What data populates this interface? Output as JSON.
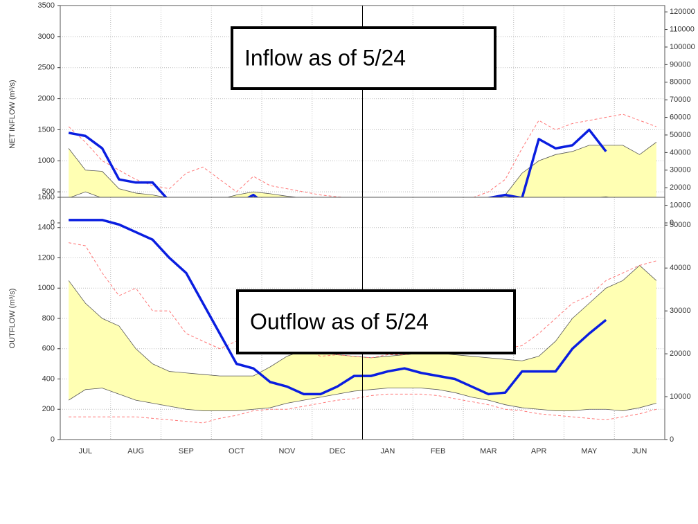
{
  "chart_data": [
    {
      "type": "line",
      "y_label": "NET INFLOW (m³/s)",
      "annotation": "Inflow as of 5/24",
      "ylim": [
        0,
        3500
      ],
      "yticks": [
        0,
        500,
        1000,
        1500,
        2000,
        2500,
        3000,
        3500
      ],
      "y2lim": [
        0,
        123600
      ],
      "y2ticks": [
        0,
        10000,
        20000,
        30000,
        40000,
        50000,
        60000,
        70000,
        80000,
        90000,
        100000,
        110000,
        120000
      ],
      "grid": true,
      "band": {
        "color": "#ffffb3",
        "upper": [
          1200,
          850,
          830,
          550,
          480,
          450,
          400,
          350,
          300,
          380,
          450,
          500,
          470,
          430,
          400,
          380,
          360,
          340,
          320,
          300,
          280,
          270,
          260,
          270,
          300,
          340,
          450,
          800,
          1000,
          1100,
          1150,
          1250,
          1250,
          1250,
          1100,
          1300
        ],
        "lower": [
          400,
          500,
          400,
          300,
          200,
          120,
          80,
          60,
          60,
          80,
          100,
          120,
          130,
          150,
          170,
          180,
          190,
          200,
          200,
          190,
          180,
          180,
          180,
          190,
          200,
          210,
          230,
          260,
          300,
          350,
          400,
          400,
          420,
          380,
          350,
          380
        ]
      },
      "series": [
        {
          "color": "#ff7777",
          "dash": true,
          "values": [
            1550,
            1300,
            1000,
            850,
            700,
            600,
            550,
            800,
            900,
            700,
            500,
            750,
            600,
            550,
            500,
            450,
            420,
            400,
            380,
            360,
            340,
            320,
            310,
            330,
            400,
            500,
            700,
            1200,
            1650,
            1500,
            1600,
            1650,
            1700,
            1750,
            1650,
            1550
          ]
        },
        {
          "color": "#ff7777",
          "dash": true,
          "values": [
            100,
            150,
            100,
            60,
            40,
            20,
            10,
            10,
            20,
            30,
            40,
            50,
            60,
            80,
            90,
            100,
            100,
            100,
            100,
            100,
            100,
            100,
            100,
            110,
            120,
            130,
            140,
            150,
            200,
            250,
            300,
            350,
            400,
            300,
            200,
            150
          ]
        },
        {
          "color": "#0a1ee0",
          "width": 3.5,
          "values": [
            1450,
            1400,
            1200,
            700,
            650,
            650,
            350,
            100,
            350,
            250,
            300,
            450,
            250,
            250,
            200,
            250,
            320,
            350,
            330,
            300,
            250,
            220,
            200,
            250,
            300,
            400,
            450,
            400,
            1350,
            1200,
            1250,
            1500,
            1150,
            null,
            null,
            null
          ]
        }
      ]
    },
    {
      "type": "line",
      "y_label": "OUTFLOW (m³/s)",
      "annotation": "Outflow as of 5/24",
      "categories": [
        null,
        "JUL",
        null,
        null,
        "AUG",
        null,
        null,
        "SEP",
        null,
        null,
        "OCT",
        null,
        null,
        "NOV",
        null,
        null,
        "DEC",
        null,
        null,
        "JAN",
        null,
        null,
        "FEB",
        null,
        null,
        "MAR",
        null,
        null,
        "APR",
        null,
        null,
        "MAY",
        null,
        null,
        "JUN",
        null
      ],
      "ylim": [
        0,
        1600
      ],
      "yticks": [
        0,
        200,
        400,
        600,
        800,
        1000,
        1200,
        1400,
        1600
      ],
      "y2lim": [
        0,
        56500
      ],
      "y2ticks": [
        0,
        10000,
        20000,
        30000,
        40000,
        50000
      ],
      "grid": true,
      "band": {
        "color": "#ffffb3",
        "upper": [
          1050,
          900,
          800,
          750,
          600,
          500,
          450,
          440,
          430,
          420,
          420,
          420,
          480,
          550,
          590,
          580,
          560,
          550,
          540,
          550,
          560,
          570,
          570,
          560,
          550,
          540,
          530,
          520,
          550,
          650,
          800,
          900,
          1000,
          1050,
          1150,
          1050
        ],
        "lower": [
          260,
          330,
          340,
          300,
          260,
          240,
          220,
          200,
          190,
          190,
          190,
          200,
          210,
          240,
          260,
          280,
          300,
          320,
          330,
          340,
          340,
          340,
          330,
          310,
          280,
          260,
          230,
          210,
          200,
          190,
          190,
          200,
          200,
          190,
          210,
          240
        ]
      },
      "series": [
        {
          "color": "#ff7777",
          "dash": true,
          "values": [
            1300,
            1280,
            1100,
            950,
            1000,
            850,
            850,
            700,
            650,
            600,
            650,
            650,
            680,
            650,
            600,
            550,
            560,
            550,
            540,
            560,
            560,
            580,
            590,
            610,
            600,
            600,
            600,
            620,
            700,
            800,
            900,
            950,
            1050,
            1100,
            1150,
            1180
          ]
        },
        {
          "color": "#ff7777",
          "dash": true,
          "values": [
            150,
            150,
            150,
            150,
            150,
            140,
            130,
            120,
            110,
            140,
            160,
            190,
            200,
            200,
            220,
            240,
            260,
            270,
            290,
            300,
            300,
            300,
            290,
            270,
            250,
            230,
            200,
            190,
            170,
            160,
            150,
            140,
            130,
            150,
            170,
            200
          ]
        },
        {
          "color": "#0a1ee0",
          "width": 3.5,
          "values": [
            1450,
            1450,
            1450,
            1420,
            1370,
            1320,
            1200,
            1100,
            900,
            700,
            500,
            470,
            380,
            350,
            300,
            300,
            350,
            420,
            420,
            450,
            470,
            440,
            420,
            400,
            350,
            300,
            310,
            450,
            450,
            450,
            600,
            700,
            790,
            null,
            null,
            null
          ]
        }
      ]
    }
  ]
}
